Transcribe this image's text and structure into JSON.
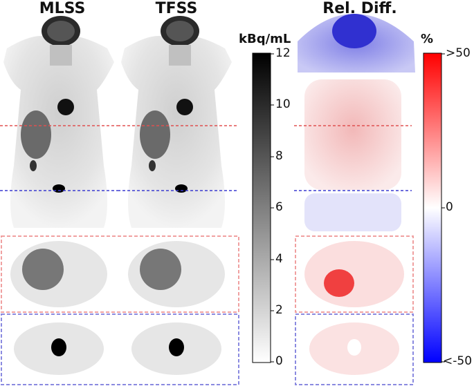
{
  "titles": {
    "left": "MLSS",
    "middle": "TFSS",
    "right": "Rel. Diff."
  },
  "gray_colorbar": {
    "unit": "kBq/mL",
    "ticks": [
      "12",
      "10",
      "8",
      "6",
      "4",
      "2",
      "0"
    ],
    "min": 0,
    "max": 12
  },
  "diff_colorbar": {
    "unit": "%",
    "ticks": [
      ">50",
      "0",
      "<-50"
    ],
    "min": -50,
    "max": 50
  },
  "colors": {
    "red_line": "#e05050",
    "blue_line": "#3a3ad0",
    "red_box": "#f0a0a0",
    "blue_box": "#8a8ae0"
  }
}
